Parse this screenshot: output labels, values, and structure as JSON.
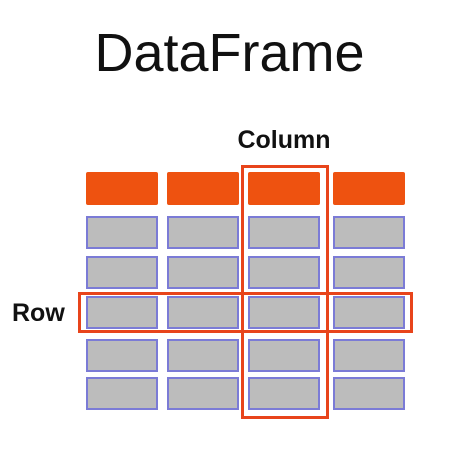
{
  "title": "DataFrame",
  "column_label": "Column",
  "row_label": "Row",
  "grid": {
    "columns": 4,
    "header_rows": 1,
    "data_rows": 5,
    "highlighted_column": 3,
    "highlighted_row": 3
  },
  "colors": {
    "header_fill": "#ee5210",
    "cell_fill": "#bcbcbc",
    "cell_border": "#7b7bd6",
    "highlight_border": "#e8441b",
    "text": "#111111"
  }
}
